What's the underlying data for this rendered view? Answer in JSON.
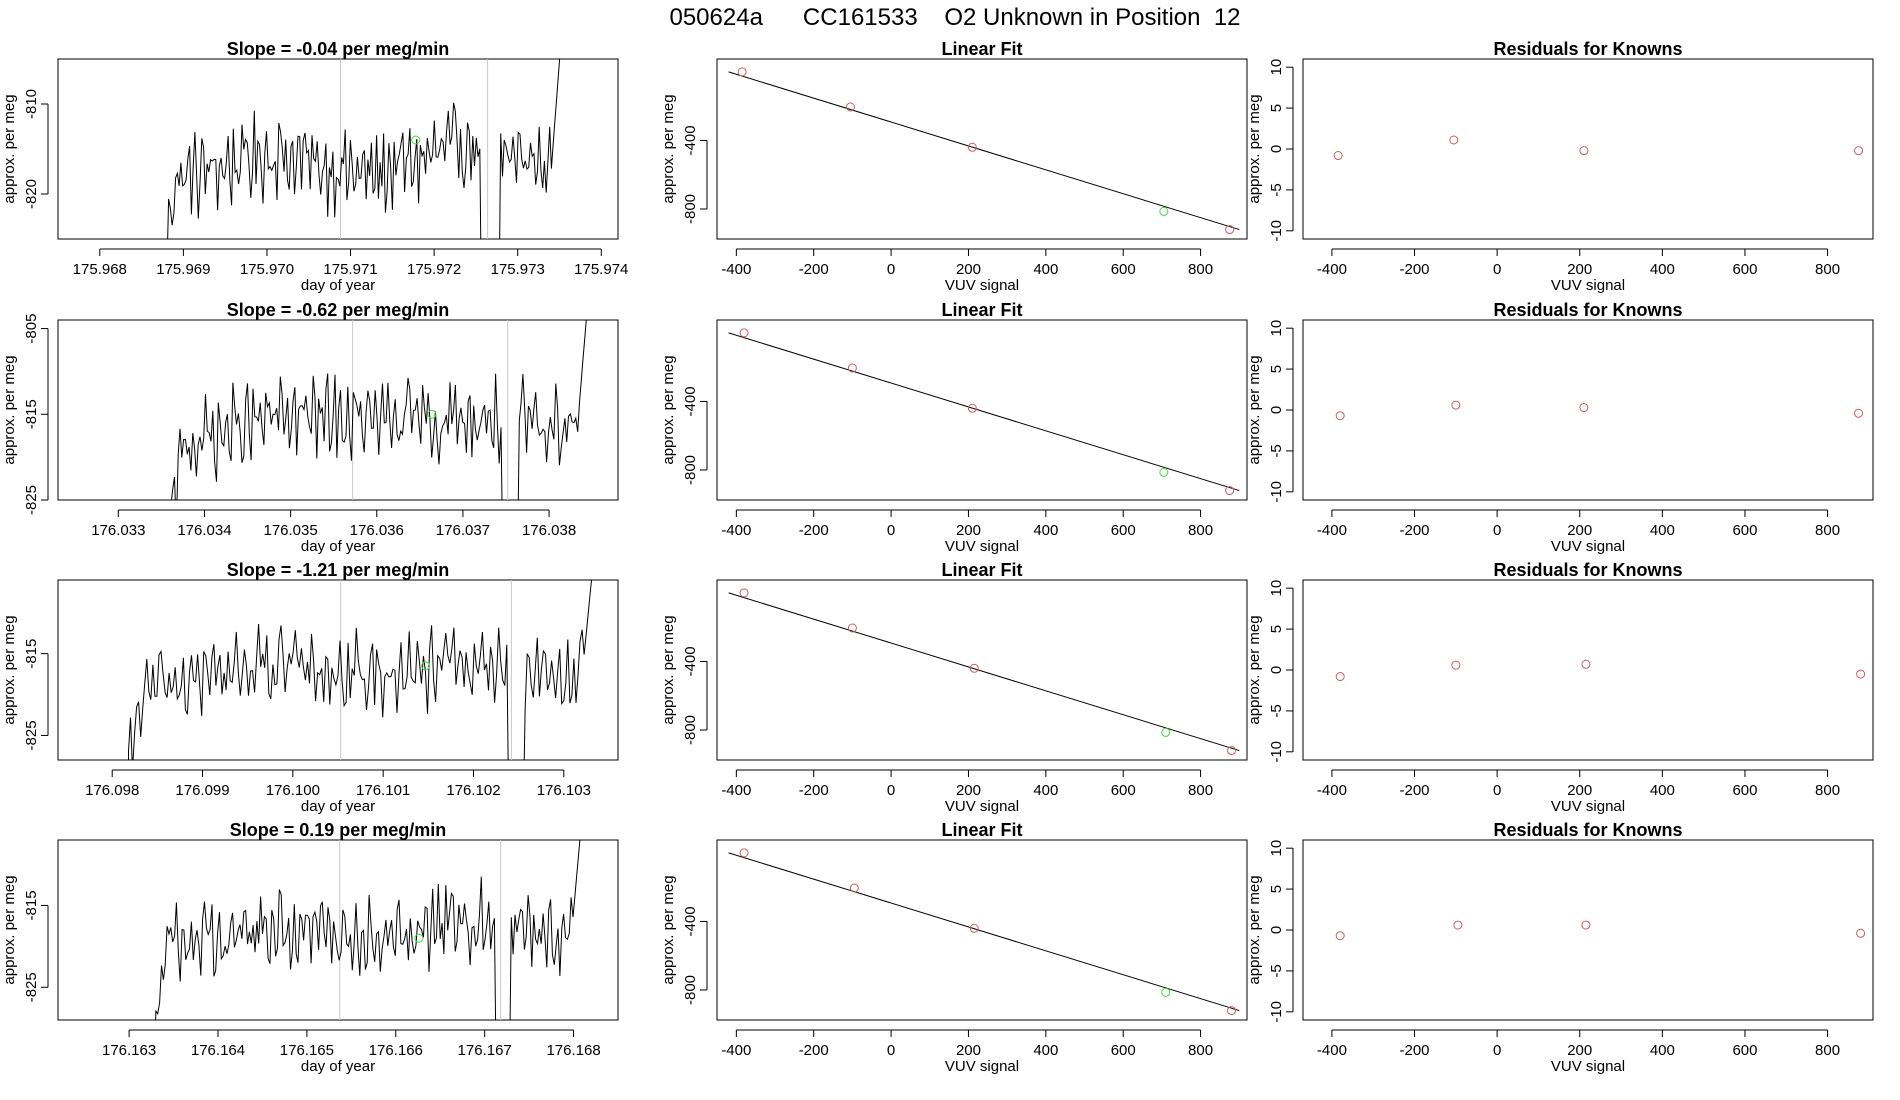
{
  "figure": {
    "title": "050624a      CC161533    O2 Unknown in Position  12"
  },
  "colors": {
    "line": "#000000",
    "known": "#cd5c5c",
    "unknown": "#3ddc3d",
    "marker": "#c8c8c8"
  },
  "chart_data": [
    {
      "type": "line",
      "row": 0,
      "column": "time",
      "title": "Slope =  -0.04  per meg/min",
      "xlabel": "day of year",
      "ylabel": "approx. per meg",
      "xlim": [
        175.9675,
        175.9742
      ],
      "ylim": [
        -825.0,
        -805.0
      ],
      "xticks": [
        175.968,
        175.969,
        175.97,
        175.971,
        175.972,
        175.973,
        175.974
      ],
      "xtick_labels": [
        "175.968",
        "175.969",
        "175.970",
        "175.971",
        "175.972",
        "175.973",
        "175.974"
      ],
      "yticks": [
        -820,
        -810
      ],
      "ytick_labels": [
        "-820",
        "-810"
      ],
      "trace_start": 175.96874,
      "trace_end": 175.97355,
      "markers": [
        175.97088,
        175.97264
      ],
      "gap": [
        175.97256,
        175.97278
      ],
      "trace_levels": [
        -831,
        -818.5,
        -815.5,
        -818,
        -814.5,
        -817
      ],
      "unknown_point": {
        "x": 175.97178,
        "y": -814.0
      },
      "series": [
        {
          "name": "approx. per meg",
          "points": []
        }
      ]
    },
    {
      "type": "scatter",
      "row": 0,
      "column": "fit",
      "title": "Linear Fit",
      "xlabel": "VUV signal",
      "ylabel": "approx. per meg",
      "xlim": [
        -450,
        920
      ],
      "ylim": [
        -975,
        75
      ],
      "xticks": [
        -400,
        -200,
        0,
        200,
        400,
        600,
        800
      ],
      "xtick_labels": [
        "-400",
        "-200",
        "0",
        "200",
        "400",
        "600",
        "800"
      ],
      "yticks": [
        -800,
        -400
      ],
      "ytick_labels": [
        "-800",
        "-400"
      ],
      "fit_line": {
        "x": [
          -420,
          900
        ],
        "y": [
          0,
          -920
        ]
      },
      "knowns": {
        "x": [
          -385,
          -105,
          210,
          875
        ],
        "y": [
          0,
          -205,
          -440,
          -920
        ]
      },
      "unknown": {
        "x": 705,
        "y": -814
      }
    },
    {
      "type": "scatter",
      "row": 0,
      "column": "residuals",
      "title": "Residuals for Knowns",
      "xlabel": "VUV signal",
      "ylabel": "approx. per meg",
      "xlim": [
        -470,
        910
      ],
      "ylim": [
        -11,
        11
      ],
      "xticks": [
        -400,
        -200,
        0,
        200,
        400,
        600,
        800
      ],
      "xtick_labels": [
        "-400",
        "-200",
        "0",
        "200",
        "400",
        "600",
        "800"
      ],
      "yticks": [
        -10,
        -5,
        0,
        5,
        10
      ],
      "ytick_labels": [
        "-10",
        "-5",
        "0",
        "5",
        "10"
      ],
      "x": [
        -385,
        -105,
        210,
        875
      ],
      "y": [
        -0.8,
        1.1,
        -0.2,
        -0.2
      ]
    },
    {
      "type": "line",
      "row": 1,
      "column": "time",
      "title": "Slope =  -0.62  per meg/min",
      "xlabel": "day of year",
      "ylabel": "approx. per meg",
      "xlim": [
        176.0323,
        176.0388
      ],
      "ylim": [
        -825.0,
        -804.0
      ],
      "xticks": [
        176.033,
        176.034,
        176.035,
        176.036,
        176.037,
        176.038
      ],
      "xtick_labels": [
        "176.033",
        "176.034",
        "176.035",
        "176.036",
        "176.037",
        "176.038"
      ],
      "yticks": [
        -825,
        -815,
        -805
      ],
      "ytick_labels": [
        "-825",
        "-815",
        "-805"
      ],
      "trace_start": 176.03361,
      "trace_end": 176.03848,
      "markers": [
        176.03572,
        176.03752
      ],
      "gap": [
        176.03746,
        176.03764
      ],
      "trace_levels": [
        -828,
        -818.5,
        -815,
        -816,
        -815.5,
        -816
      ],
      "unknown_point": {
        "x": 176.03664,
        "y": -815.0
      },
      "series": [
        {
          "name": "approx. per meg",
          "points": []
        }
      ]
    },
    {
      "type": "scatter",
      "row": 1,
      "column": "fit",
      "title": "Linear Fit",
      "xlabel": "VUV signal",
      "ylabel": "approx. per meg",
      "xlim": [
        -450,
        920
      ],
      "ylim": [
        -975,
        75
      ],
      "xticks": [
        -400,
        -200,
        0,
        200,
        400,
        600,
        800
      ],
      "xtick_labels": [
        "-400",
        "-200",
        "0",
        "200",
        "400",
        "600",
        "800"
      ],
      "yticks": [
        -800,
        -400
      ],
      "ytick_labels": [
        "-800",
        "-400"
      ],
      "fit_line": {
        "x": [
          -420,
          900
        ],
        "y": [
          0,
          -920
        ]
      },
      "knowns": {
        "x": [
          -380,
          -100,
          210,
          875
        ],
        "y": [
          0,
          -205,
          -440,
          -920
        ]
      },
      "unknown": {
        "x": 705,
        "y": -814
      }
    },
    {
      "type": "scatter",
      "row": 1,
      "column": "residuals",
      "title": "Residuals for Knowns",
      "xlabel": "VUV signal",
      "ylabel": "approx. per meg",
      "xlim": [
        -470,
        910
      ],
      "ylim": [
        -11,
        11
      ],
      "xticks": [
        -400,
        -200,
        0,
        200,
        400,
        600,
        800
      ],
      "xtick_labels": [
        "-400",
        "-200",
        "0",
        "200",
        "400",
        "600",
        "800"
      ],
      "yticks": [
        -10,
        -5,
        0,
        5,
        10
      ],
      "ytick_labels": [
        "-10",
        "-5",
        "0",
        "5",
        "10"
      ],
      "x": [
        -380,
        -100,
        210,
        875
      ],
      "y": [
        -0.7,
        0.6,
        0.3,
        -0.4
      ]
    },
    {
      "type": "line",
      "row": 2,
      "column": "time",
      "title": "Slope =  -1.21  per meg/min",
      "xlabel": "day of year",
      "ylabel": "approx. per meg",
      "xlim": [
        176.0974,
        176.1036
      ],
      "ylim": [
        -828.0,
        -806.0
      ],
      "xticks": [
        176.098,
        176.099,
        176.1,
        176.101,
        176.102,
        176.103
      ],
      "xtick_labels": [
        "176.098",
        "176.099",
        "176.100",
        "176.101",
        "176.102",
        "176.103"
      ],
      "yticks": [
        -825,
        -815
      ],
      "ytick_labels": [
        "-825",
        "-815"
      ],
      "trace_start": 176.09818,
      "trace_end": 176.10336,
      "markers": [
        176.10053,
        176.10242
      ],
      "gap": [
        176.10238,
        176.10256
      ],
      "trace_levels": [
        -830,
        -819.5,
        -816.5,
        -817.5,
        -816.5,
        -817.5
      ],
      "unknown_point": {
        "x": 176.10147,
        "y": -816.5
      },
      "series": [
        {
          "name": "approx. per meg",
          "points": []
        }
      ]
    },
    {
      "type": "scatter",
      "row": 2,
      "column": "fit",
      "title": "Linear Fit",
      "xlabel": "VUV signal",
      "ylabel": "approx. per meg",
      "xlim": [
        -450,
        920
      ],
      "ylim": [
        -975,
        75
      ],
      "xticks": [
        -400,
        -200,
        0,
        200,
        400,
        600,
        800
      ],
      "xtick_labels": [
        "-400",
        "-200",
        "0",
        "200",
        "400",
        "600",
        "800"
      ],
      "yticks": [
        -800,
        -400
      ],
      "ytick_labels": [
        "-800",
        "-400"
      ],
      "fit_line": {
        "x": [
          -420,
          900
        ],
        "y": [
          0,
          -920
        ]
      },
      "knowns": {
        "x": [
          -380,
          -100,
          215,
          880
        ],
        "y": [
          0,
          -205,
          -440,
          -920
        ]
      },
      "unknown": {
        "x": 710,
        "y": -814
      }
    },
    {
      "type": "scatter",
      "row": 2,
      "column": "residuals",
      "title": "Residuals for Knowns",
      "xlabel": "VUV signal",
      "ylabel": "approx. per meg",
      "xlim": [
        -470,
        910
      ],
      "ylim": [
        -11,
        11
      ],
      "xticks": [
        -400,
        -200,
        0,
        200,
        400,
        600,
        800
      ],
      "xtick_labels": [
        "-400",
        "-200",
        "0",
        "200",
        "400",
        "600",
        "800"
      ],
      "yticks": [
        -10,
        -5,
        0,
        5,
        10
      ],
      "ytick_labels": [
        "-10",
        "-5",
        "0",
        "5",
        "10"
      ],
      "x": [
        -380,
        -100,
        215,
        880
      ],
      "y": [
        -0.8,
        0.6,
        0.7,
        -0.5
      ]
    },
    {
      "type": "line",
      "row": 3,
      "column": "time",
      "title": "Slope =  0.19  per meg/min",
      "xlabel": "day of year",
      "ylabel": "approx. per meg",
      "xlim": [
        176.1622,
        176.1685
      ],
      "ylim": [
        -829.0,
        -807.0
      ],
      "xticks": [
        176.163,
        176.164,
        176.165,
        176.166,
        176.167,
        176.168
      ],
      "xtick_labels": [
        "176.163",
        "176.164",
        "176.165",
        "176.166",
        "176.167",
        "176.168"
      ],
      "yticks": [
        -825,
        -815
      ],
      "ytick_labels": [
        "-825",
        "-815"
      ],
      "trace_start": 176.16328,
      "trace_end": 176.16812,
      "markers": [
        176.16537,
        176.16718
      ],
      "gap": [
        176.16712,
        176.16728
      ],
      "trace_levels": [
        -831,
        -819.5,
        -818,
        -818.5,
        -816.5,
        -819
      ],
      "unknown_point": {
        "x": 176.16626,
        "y": -819.0
      },
      "series": [
        {
          "name": "approx. per meg",
          "points": []
        }
      ]
    },
    {
      "type": "scatter",
      "row": 3,
      "column": "fit",
      "title": "Linear Fit",
      "xlabel": "VUV signal",
      "ylabel": "approx. per meg",
      "xlim": [
        -450,
        920
      ],
      "ylim": [
        -975,
        75
      ],
      "xticks": [
        -400,
        -200,
        0,
        200,
        400,
        600,
        800
      ],
      "xtick_labels": [
        "-400",
        "-200",
        "0",
        "200",
        "400",
        "600",
        "800"
      ],
      "yticks": [
        -800,
        -400
      ],
      "ytick_labels": [
        "-800",
        "-400"
      ],
      "fit_line": {
        "x": [
          -420,
          900
        ],
        "y": [
          0,
          -920
        ]
      },
      "knowns": {
        "x": [
          -380,
          -95,
          215,
          880
        ],
        "y": [
          0,
          -205,
          -440,
          -920
        ]
      },
      "unknown": {
        "x": 710,
        "y": -814
      }
    },
    {
      "type": "scatter",
      "row": 3,
      "column": "residuals",
      "title": "Residuals for Knowns",
      "xlabel": "VUV signal",
      "ylabel": "approx. per meg",
      "xlim": [
        -470,
        910
      ],
      "ylim": [
        -11,
        11
      ],
      "xticks": [
        -400,
        -200,
        0,
        200,
        400,
        600,
        800
      ],
      "xtick_labels": [
        "-400",
        "-200",
        "0",
        "200",
        "400",
        "600",
        "800"
      ],
      "yticks": [
        -10,
        -5,
        0,
        5,
        10
      ],
      "ytick_labels": [
        "-10",
        "-5",
        "0",
        "5",
        "10"
      ],
      "x": [
        -380,
        -95,
        215,
        880
      ],
      "y": [
        -0.7,
        0.6,
        0.6,
        -0.4
      ]
    }
  ]
}
